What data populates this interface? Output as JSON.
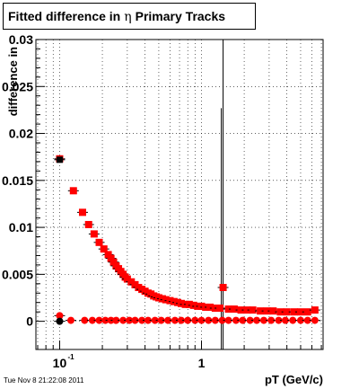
{
  "title": {
    "prefix": "Fitted difference in",
    "symbol": "η",
    "suffix": "Primary Tracks"
  },
  "timestamp": "Tue Nov  8 21:22:08 2011",
  "chart_data": {
    "type": "scatter",
    "title": "Fitted difference in η Primary Tracks",
    "xlabel": "pT (GeV/c)",
    "ylabel": "difference in",
    "xscale": "log",
    "xlim": [
      0.068,
      7.2
    ],
    "ylim": [
      -0.003,
      0.03
    ],
    "x_tick_labels": [
      {
        "value": 0.1,
        "base": "10",
        "exp": "-1"
      },
      {
        "value": 1,
        "base": "1",
        "exp": ""
      }
    ],
    "y_ticks": [
      {
        "value": 0,
        "label": "0"
      },
      {
        "value": 0.005,
        "label": "0.005"
      },
      {
        "value": 0.01,
        "label": "0.01"
      },
      {
        "value": 0.015,
        "label": "0.015"
      },
      {
        "value": 0.02,
        "label": "0.02"
      },
      {
        "value": 0.025,
        "label": "0.025"
      },
      {
        "value": 0.03,
        "label": "0.03"
      }
    ],
    "grid": true,
    "colors": {
      "series": "#ff0000",
      "markers_black": "#000000"
    },
    "series": [
      {
        "marker": "square",
        "color": "#ff0000",
        "x": [
          0.1,
          0.125,
          0.145,
          0.16,
          0.175,
          0.19,
          0.205,
          0.22,
          0.23,
          0.24,
          0.25,
          0.26,
          0.27,
          0.28,
          0.29,
          0.3,
          0.32,
          0.34,
          0.36,
          0.38,
          0.4,
          0.42,
          0.44,
          0.46,
          0.48,
          0.5,
          0.53,
          0.56,
          0.6,
          0.64,
          0.68,
          0.72,
          0.77,
          0.82,
          0.88,
          0.94,
          1.0,
          1.07,
          1.15,
          1.25,
          1.35,
          1.42,
          1.55,
          1.7,
          1.9,
          2.1,
          2.3,
          2.6,
          2.9,
          3.2,
          3.6,
          4.0,
          4.5,
          5.0,
          5.6,
          6.3
        ],
        "y": [
          0.0173,
          0.0139,
          0.0116,
          0.0103,
          0.0093,
          0.0084,
          0.0077,
          0.0071,
          0.0067,
          0.0063,
          0.0059,
          0.0056,
          0.0053,
          0.005,
          0.0047,
          0.0045,
          0.0042,
          0.0039,
          0.0036,
          0.0034,
          0.0032,
          0.003,
          0.0029,
          0.0027,
          0.0026,
          0.0025,
          0.0024,
          0.0023,
          0.0022,
          0.0021,
          0.002,
          0.0019,
          0.0018,
          0.0018,
          0.0017,
          0.0016,
          0.0016,
          0.0015,
          0.0015,
          0.0014,
          0.0014,
          0.0036,
          0.0013,
          0.0013,
          0.0012,
          0.0012,
          0.0012,
          0.0011,
          0.0011,
          0.0011,
          0.001,
          0.001,
          0.001,
          0.001,
          0.001,
          0.0012
        ]
      },
      {
        "marker": "circle",
        "color": "#ff0000",
        "x": [
          0.1,
          0.12,
          0.15,
          0.17,
          0.19,
          0.21,
          0.23,
          0.25,
          0.28,
          0.31,
          0.34,
          0.38,
          0.42,
          0.47,
          0.52,
          0.58,
          0.65,
          0.72,
          0.8,
          0.9,
          1.0,
          1.12,
          1.25,
          1.4,
          1.55,
          1.75,
          1.95,
          2.2,
          2.45,
          2.75,
          3.1,
          3.5,
          3.9,
          4.4,
          5.0,
          5.6,
          6.3
        ],
        "y": [
          0.0006,
          0.0001,
          0.0001,
          0.0001,
          0.0001,
          0.0001,
          0.0001,
          0.0001,
          0.0001,
          0.0001,
          0.0001,
          0.0001,
          0.0001,
          0.0001,
          0.0001,
          0.0001,
          0.0001,
          0.0001,
          0.0001,
          0.0001,
          0.0001,
          0.0001,
          0.0001,
          0.0001,
          0.0001,
          0.0001,
          0.0001,
          0.0001,
          0.0001,
          0.0001,
          0.0001,
          0.0001,
          0.0001,
          0.0001,
          0.0001,
          0.0001,
          0.0001
        ]
      },
      {
        "marker": "square-black",
        "color": "#000000",
        "x": [
          0.1
        ],
        "y": [
          0.0172
        ]
      },
      {
        "marker": "circle-black",
        "color": "#000000",
        "x": [
          0.1
        ],
        "y": [
          0.0
        ]
      }
    ]
  }
}
